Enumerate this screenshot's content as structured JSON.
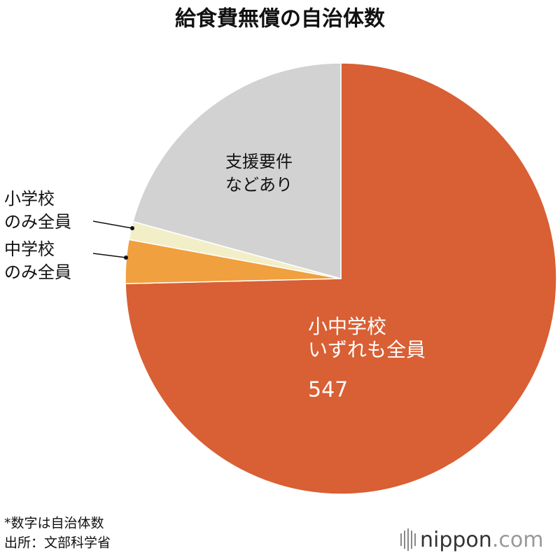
{
  "chart_data": {
    "type": "pie",
    "title": "給食費無償の自治体数",
    "labels": [
      [
        "小中学校",
        "いずれも全員"
      ],
      [
        "中学校",
        "のみ全員"
      ],
      [
        "小学校",
        "のみ全員"
      ],
      [
        "支援要件",
        "などあり"
      ]
    ],
    "values": [
      547,
      24,
      10,
      152
    ],
    "show_value": [
      true,
      false,
      false,
      false
    ],
    "colors": [
      "#d95f34",
      "#f0a03e",
      "#f2efc8",
      "#d2d2d2"
    ],
    "notes": [
      "*数字は自治体数",
      "出所：文部科学省"
    ],
    "logo": [
      "nippon",
      ".com"
    ]
  }
}
